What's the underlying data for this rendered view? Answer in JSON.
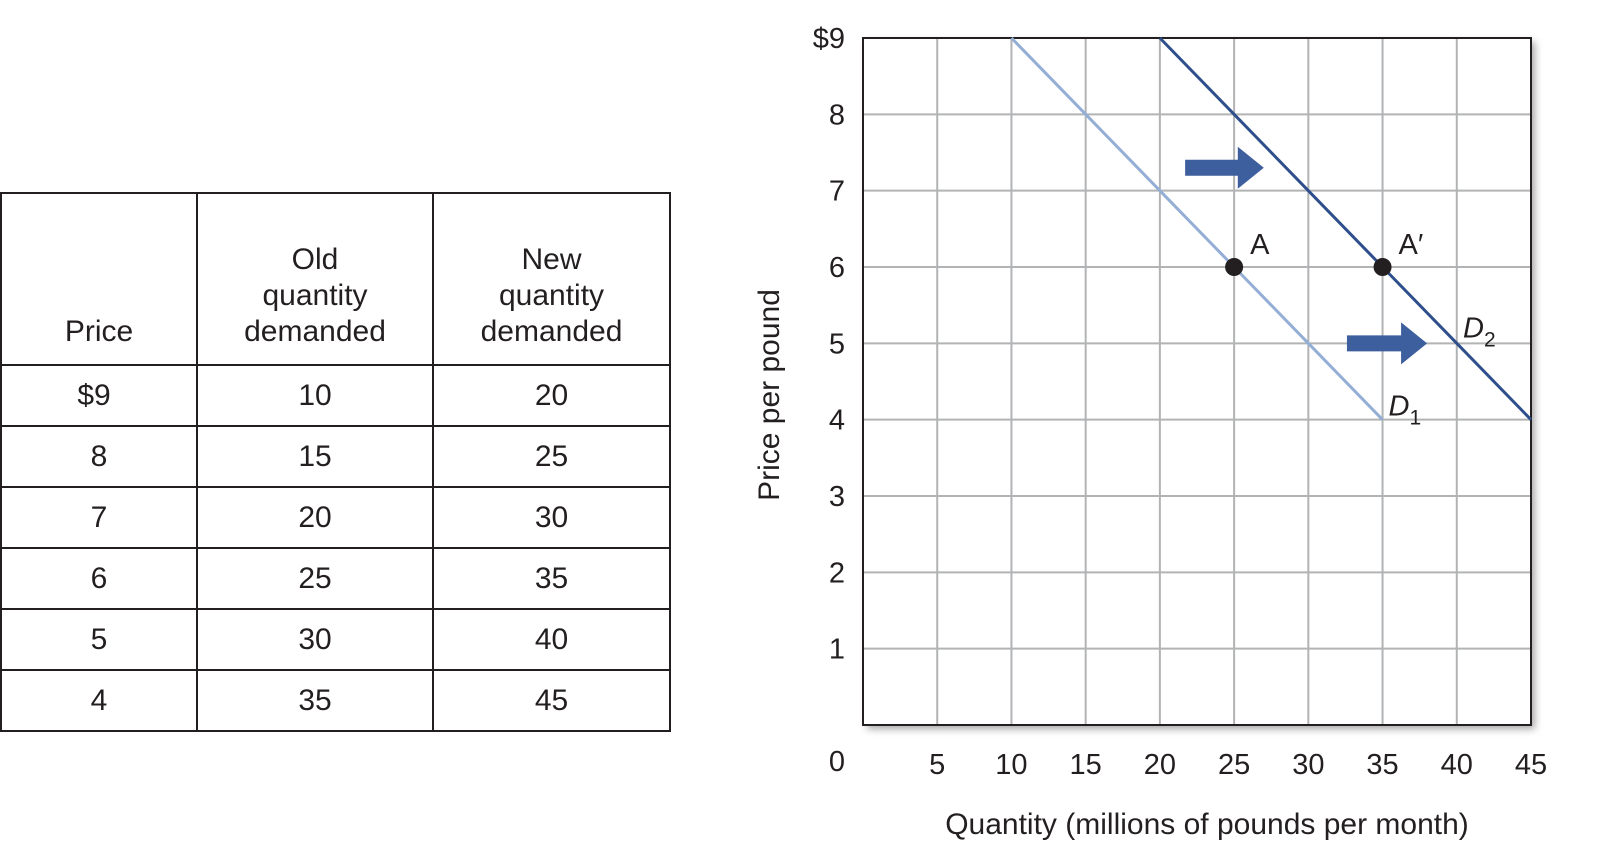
{
  "table": {
    "headers": [
      {
        "lines": [
          "",
          "",
          "Price"
        ]
      },
      {
        "lines": [
          "Old",
          "quantity",
          "demanded"
        ]
      },
      {
        "lines": [
          "New",
          "quantity",
          "demanded"
        ]
      }
    ],
    "rows": [
      [
        "$9",
        "10",
        "20"
      ],
      [
        "8",
        "15",
        "25"
      ],
      [
        "7",
        "20",
        "30"
      ],
      [
        "6",
        "25",
        "35"
      ],
      [
        "5",
        "30",
        "40"
      ],
      [
        "4",
        "35",
        "45"
      ]
    ]
  },
  "chart_data": {
    "type": "line",
    "xlabel": "Quantity (millions of pounds per month)",
    "ylabel": "Price per pound",
    "xlim": [
      0,
      45
    ],
    "ylim": [
      0,
      9
    ],
    "x_ticks": [
      "5",
      "10",
      "15",
      "20",
      "25",
      "30",
      "35",
      "40",
      "45"
    ],
    "y_ticks": [
      "1",
      "2",
      "3",
      "4",
      "5",
      "6",
      "7",
      "8",
      "$9"
    ],
    "origin_label": "0",
    "grid": true,
    "series": [
      {
        "name": "D",
        "subscript": "1",
        "color": "#94aed6",
        "points": [
          [
            10,
            9
          ],
          [
            15,
            8
          ],
          [
            20,
            7
          ],
          [
            25,
            6
          ],
          [
            30,
            5
          ],
          [
            35,
            4
          ]
        ]
      },
      {
        "name": "D",
        "subscript": "2",
        "color": "#2e4f8c",
        "points": [
          [
            20,
            9
          ],
          [
            25,
            8
          ],
          [
            30,
            7
          ],
          [
            35,
            6
          ],
          [
            40,
            5
          ],
          [
            45,
            4
          ]
        ]
      }
    ],
    "points": [
      {
        "label": "A",
        "x": 25,
        "y": 6
      },
      {
        "label": "A′",
        "x": 35,
        "y": 6
      }
    ],
    "arrows": [
      {
        "y": 7.3,
        "from_x": 21.7,
        "to_x": 27
      },
      {
        "y": 5,
        "from_x": 32.6,
        "to_x": 38
      },
      {
        "note": "shift direction",
        "direction": "right"
      }
    ],
    "colors": {
      "grid": "#b2b3b5",
      "frame": "#231f20",
      "arrow": "#3e5f9e"
    }
  }
}
